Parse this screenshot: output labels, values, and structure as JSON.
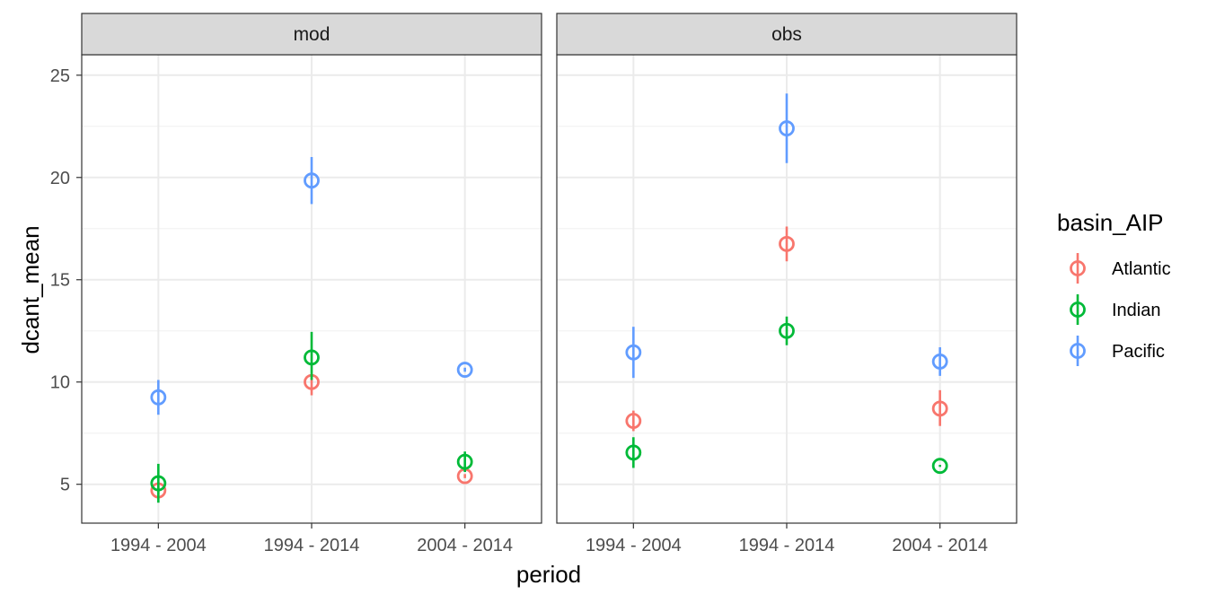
{
  "chart_data": {
    "type": "scatter",
    "xlabel": "period",
    "ylabel": "dcant_mean",
    "categories": [
      "1994 - 2004",
      "1994 - 2014",
      "2004 - 2014"
    ],
    "ylim": [
      3.1,
      26.0
    ],
    "yticks": [
      5,
      10,
      15,
      20,
      25
    ],
    "grid": true,
    "legend": {
      "title": "basin_AIP",
      "position": "right",
      "entries": [
        "Atlantic",
        "Indian",
        "Pacific"
      ]
    },
    "colors": {
      "Atlantic": "#F8766D",
      "Indian": "#00BA38",
      "Pacific": "#619CFF"
    },
    "panels": [
      {
        "strip": "mod",
        "series": [
          {
            "name": "Atlantic",
            "values": [
              4.7,
              10.0,
              5.4
            ],
            "lower": [
              4.5,
              9.35,
              5.3
            ],
            "upper": [
              4.9,
              10.35,
              5.5
            ]
          },
          {
            "name": "Indian",
            "values": [
              5.05,
              11.2,
              6.1
            ],
            "lower": [
              4.1,
              10.1,
              5.6
            ],
            "upper": [
              6.0,
              12.45,
              6.6
            ]
          },
          {
            "name": "Pacific",
            "values": [
              9.25,
              19.85,
              10.6
            ],
            "lower": [
              8.4,
              18.7,
              10.5
            ],
            "upper": [
              10.1,
              21.0,
              10.7
            ]
          }
        ]
      },
      {
        "strip": "obs",
        "series": [
          {
            "name": "Atlantic",
            "values": [
              8.1,
              16.75,
              8.7
            ],
            "lower": [
              7.6,
              15.9,
              7.85
            ],
            "upper": [
              8.6,
              17.6,
              9.6
            ]
          },
          {
            "name": "Indian",
            "values": [
              6.55,
              12.5,
              5.9
            ],
            "lower": [
              5.8,
              11.8,
              5.85
            ],
            "upper": [
              7.3,
              13.2,
              5.95
            ]
          },
          {
            "name": "Pacific",
            "values": [
              11.45,
              22.4,
              11.0
            ],
            "lower": [
              10.2,
              20.7,
              10.3
            ],
            "upper": [
              12.7,
              24.1,
              11.7
            ]
          }
        ]
      }
    ]
  }
}
